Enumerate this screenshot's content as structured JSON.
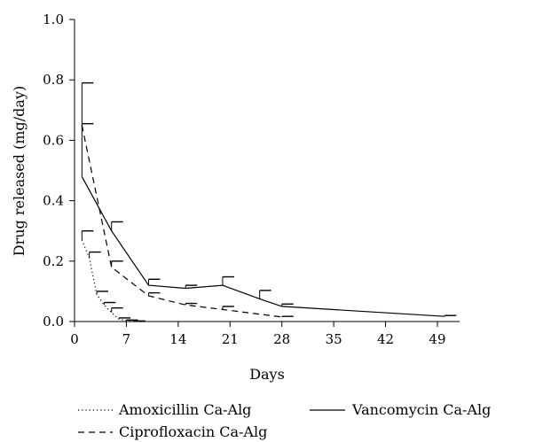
{
  "chart_data": {
    "type": "line",
    "xlabel": "Days",
    "ylabel": "Drug released (mg/day)",
    "xlim": [
      0,
      52
    ],
    "ylim": [
      0,
      1.0
    ],
    "xticks": [
      0,
      7,
      14,
      21,
      28,
      35,
      42,
      49
    ],
    "yticks": [
      0.0,
      0.2,
      0.4,
      0.6,
      0.8,
      1.0
    ],
    "ytick_labels": [
      "0.0",
      "0.2",
      "0.4",
      "0.6",
      "0.8",
      "1.0"
    ],
    "grid": false,
    "legend_position": "bottom",
    "series": [
      {
        "name": "Amoxicillin Ca-Alg",
        "line_style": "dotted",
        "color": "#000000",
        "x": [
          1,
          2,
          3,
          4,
          5,
          6,
          7,
          8
        ],
        "y": [
          0.27,
          0.21,
          0.09,
          0.055,
          0.03,
          0.008,
          0.003,
          0.001
        ],
        "error": [
          0.03,
          0.02,
          0.01,
          0.008,
          0.015,
          0.004,
          0.002,
          0.001
        ]
      },
      {
        "name": "Vancomycin Ca-Alg",
        "line_style": "solid",
        "color": "#000000",
        "x": [
          1,
          5,
          10,
          15,
          20,
          25,
          28,
          50
        ],
        "y": [
          0.48,
          0.3,
          0.12,
          0.11,
          0.12,
          0.075,
          0.05,
          0.017
        ],
        "error": [
          0.31,
          0.03,
          0.02,
          0.01,
          0.028,
          0.028,
          0.008,
          0.003
        ]
      },
      {
        "name": "Ciprofloxacin Ca-Alg",
        "line_style": "dashed",
        "color": "#000000",
        "x": [
          1,
          5,
          10,
          15,
          20,
          28
        ],
        "y": [
          0.65,
          0.18,
          0.085,
          0.055,
          0.04,
          0.015
        ],
        "error": [
          0.005,
          0.02,
          0.01,
          0.005,
          0.01,
          0.002
        ]
      }
    ]
  }
}
